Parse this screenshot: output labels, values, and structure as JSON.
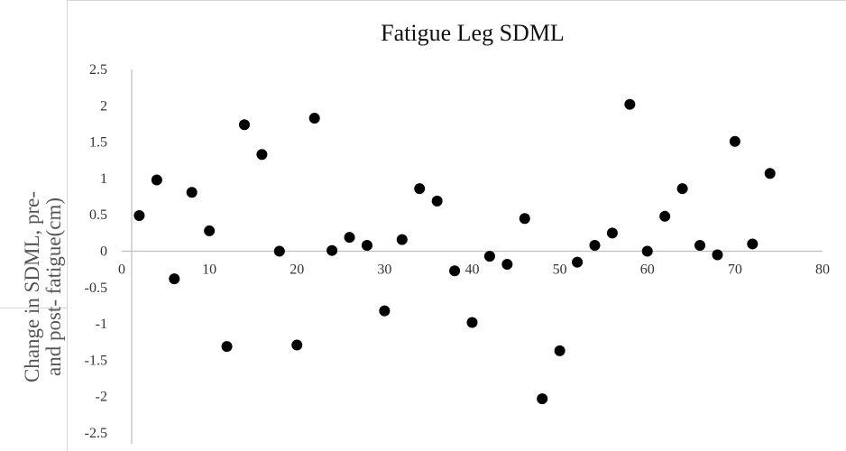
{
  "chart_data": {
    "type": "scatter",
    "title": "Fatigue Leg SDML",
    "xlabel": "",
    "ylabel_lines": [
      "Change in SDML, pre-",
      "and post- fatigue(cm)"
    ],
    "xlim": [
      0,
      80
    ],
    "ylim": [
      -2.5,
      2.5
    ],
    "x_ticks": [
      "0",
      "10",
      "20",
      "30",
      "40",
      "50",
      "60",
      "70",
      "80"
    ],
    "y_ticks": [
      "2.5",
      "2",
      "1.5",
      "1",
      "0.5",
      "0",
      "-0.5",
      "-1",
      "-1.5",
      "-2",
      "-2.5"
    ],
    "grid": false,
    "marker_color": "#000000",
    "points": [
      {
        "x": 2,
        "y": 0.49
      },
      {
        "x": 4,
        "y": 0.98
      },
      {
        "x": 6,
        "y": -0.38
      },
      {
        "x": 8,
        "y": 0.81
      },
      {
        "x": 10,
        "y": 0.28
      },
      {
        "x": 12,
        "y": -1.31
      },
      {
        "x": 14,
        "y": 1.74
      },
      {
        "x": 16,
        "y": 1.33
      },
      {
        "x": 18,
        "y": 0.0
      },
      {
        "x": 20,
        "y": -1.29
      },
      {
        "x": 22,
        "y": 1.83
      },
      {
        "x": 24,
        "y": 0.01
      },
      {
        "x": 26,
        "y": 0.19
      },
      {
        "x": 28,
        "y": 0.08
      },
      {
        "x": 30,
        "y": -0.82
      },
      {
        "x": 32,
        "y": 0.16
      },
      {
        "x": 34,
        "y": 0.86
      },
      {
        "x": 36,
        "y": 0.69
      },
      {
        "x": 38,
        "y": -0.27
      },
      {
        "x": 40,
        "y": -0.98
      },
      {
        "x": 42,
        "y": -0.07
      },
      {
        "x": 44,
        "y": -0.18
      },
      {
        "x": 46,
        "y": 0.45
      },
      {
        "x": 48,
        "y": -2.03
      },
      {
        "x": 50,
        "y": -1.37
      },
      {
        "x": 52,
        "y": -0.15
      },
      {
        "x": 54,
        "y": 0.08
      },
      {
        "x": 56,
        "y": 0.25
      },
      {
        "x": 58,
        "y": 2.02
      },
      {
        "x": 60,
        "y": 0.0
      },
      {
        "x": 62,
        "y": 0.48
      },
      {
        "x": 64,
        "y": 0.86
      },
      {
        "x": 66,
        "y": 0.08
      },
      {
        "x": 68,
        "y": -0.05
      },
      {
        "x": 70,
        "y": 1.51
      },
      {
        "x": 72,
        "y": 0.1
      },
      {
        "x": 74,
        "y": 1.07
      }
    ]
  }
}
